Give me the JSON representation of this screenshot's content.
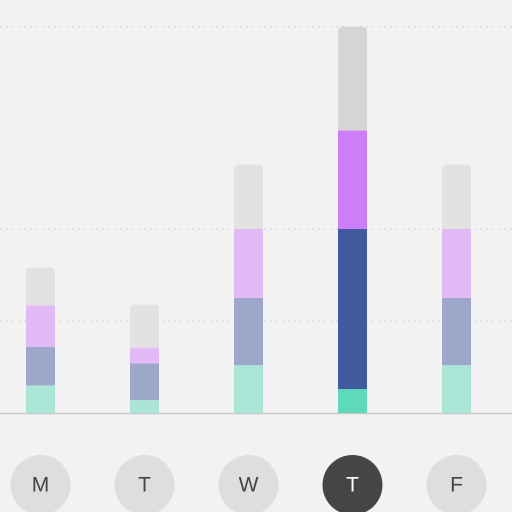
{
  "chart_data": {
    "type": "stacked-bar",
    "categories": [
      "M",
      "T",
      "W",
      "T",
      "F"
    ],
    "selected_index": 3,
    "series": [
      {
        "color": "#abe5d7",
        "highlight_color": "#5fd9bb",
        "values": [
          3.0,
          1.4,
          5.2,
          2.6,
          5.2
        ]
      },
      {
        "color": "#9ca7c9",
        "highlight_color": "#405a9e",
        "values": [
          4.2,
          4.0,
          7.3,
          17.4,
          7.3
        ]
      },
      {
        "color": "#e2baf6",
        "highlight_color": "#cc7ef8",
        "values": [
          4.5,
          1.7,
          7.5,
          10.7,
          7.5
        ]
      },
      {
        "color": "#e2e2e2",
        "highlight_color": "#d5d5d5",
        "values": [
          4.1,
          4.7,
          7.0,
          11.3,
          7.0
        ]
      }
    ],
    "ylim": [
      0,
      45
    ],
    "yticks": [
      10,
      20,
      42
    ],
    "grid": true
  }
}
